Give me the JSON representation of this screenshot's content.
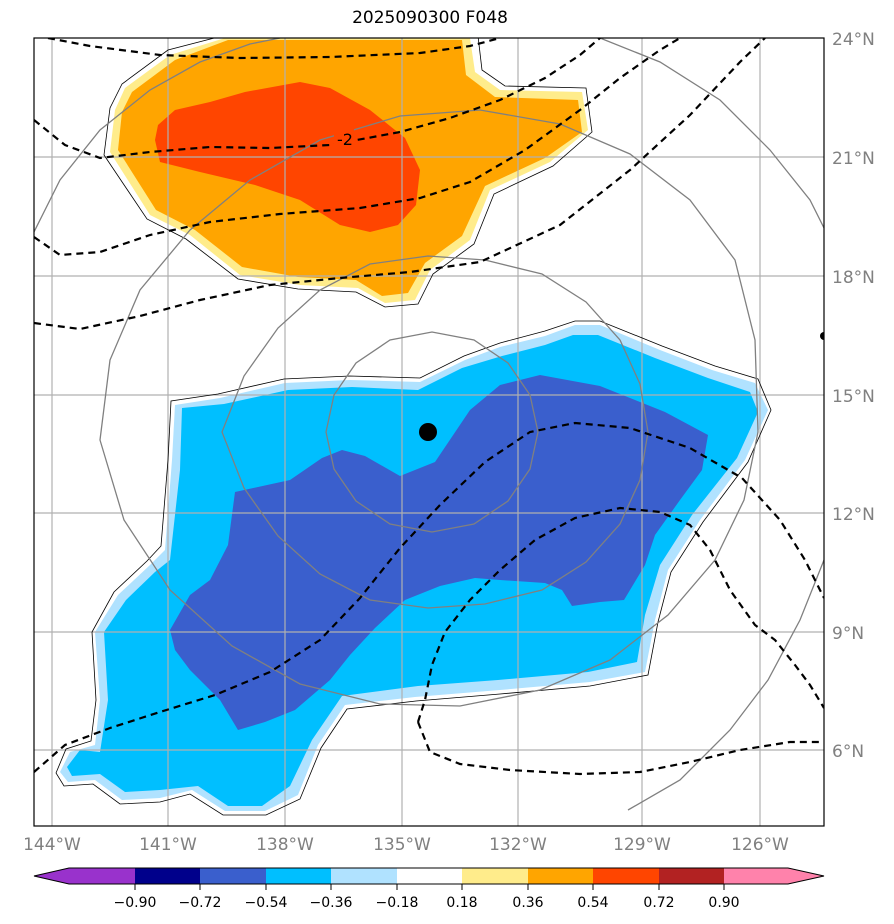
{
  "title": "2025090300 F048",
  "map": {
    "lat_labels": [
      "24°N",
      "21°N",
      "18°N",
      "15°N",
      "12°N",
      "9°N",
      "6°N"
    ],
    "lon_labels": [
      "144°W",
      "141°W",
      "138°W",
      "135°W",
      "132°W",
      "129°W",
      "126°W"
    ],
    "contour_label": "-2",
    "storm_center": "14.1°N 134.4°W"
  },
  "colorbar": {
    "ticks": [
      "−0.90",
      "−0.72",
      "−0.54",
      "−0.36",
      "−0.18",
      "0.18",
      "0.36",
      "0.54",
      "0.72",
      "0.90"
    ],
    "colors": [
      "#9932cc",
      "#00008b",
      "#3a5fcd",
      "#00bfff",
      "#b0e2ff",
      "#ffffff",
      "#ffec8b",
      "#ffa500",
      "#ff4500",
      "#b22222",
      "#ff82ab"
    ]
  }
}
